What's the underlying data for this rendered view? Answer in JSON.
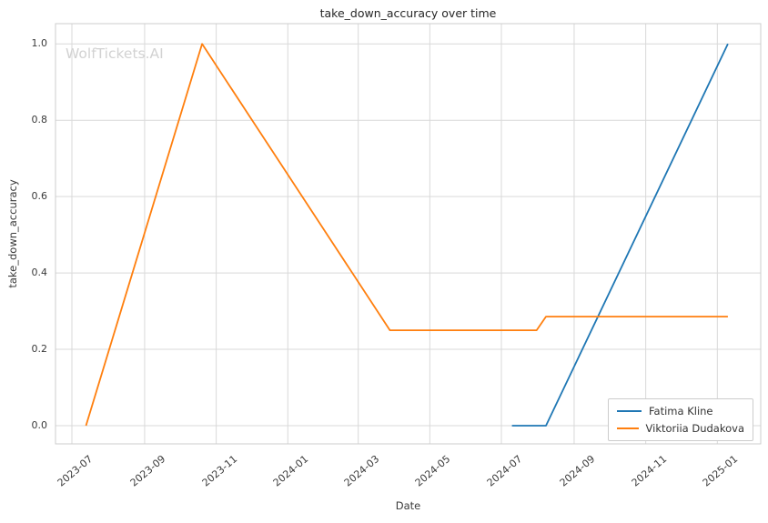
{
  "figure": {
    "background": "#ffffff",
    "grid_color": "#d9d9d9",
    "border_color": "#cccccc",
    "text_color": "#3a3a3a"
  },
  "watermark": {
    "text": "WolfTickets.AI",
    "color": "#d2d2d2"
  },
  "chart_data": {
    "type": "line",
    "title": "take_down_accuracy over time",
    "xlabel": "Date",
    "ylabel": "take_down_accuracy",
    "grid": true,
    "legend_position": "lower right",
    "ylim": [
      -0.05,
      1.05
    ],
    "xlim": [
      "2023-06-17",
      "2025-02-07"
    ],
    "y_ticks": [
      "0.0",
      "0.2",
      "0.4",
      "0.6",
      "0.8",
      "1.0"
    ],
    "x_ticks": [
      "2023-07",
      "2023-09",
      "2023-11",
      "2024-01",
      "2024-03",
      "2024-05",
      "2024-07",
      "2024-09",
      "2024-11",
      "2025-01"
    ],
    "series": [
      {
        "name": "Fatima Kline",
        "color": "#1f77b4",
        "points": [
          [
            "2024-07-10",
            0.0
          ],
          [
            "2024-08-08",
            0.0
          ],
          [
            "2025-01-10",
            1.0
          ]
        ]
      },
      {
        "name": "Viktoriia Dudakova",
        "color": "#ff7f0e",
        "points": [
          [
            "2023-07-13",
            0.0
          ],
          [
            "2023-10-20",
            1.0
          ],
          [
            "2024-03-28",
            0.25
          ],
          [
            "2024-07-31",
            0.25
          ],
          [
            "2024-08-08",
            0.2857
          ],
          [
            "2025-01-10",
            0.2857
          ]
        ]
      }
    ]
  }
}
